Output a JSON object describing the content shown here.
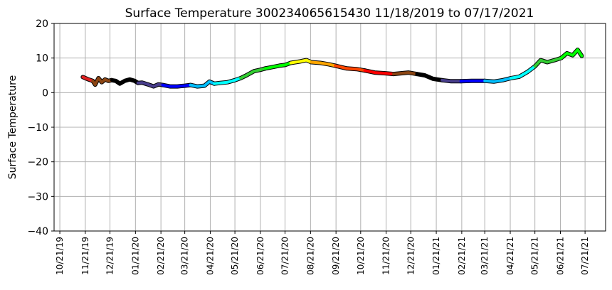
{
  "chart_data": {
    "type": "line",
    "title": "Surface Temperature 300234065615430  11/18/2019 to 07/17/2021",
    "xlabel": "",
    "ylabel": "Surface Temperature",
    "ylim": [
      -40,
      20
    ],
    "y_ticks": [
      20,
      10,
      0,
      -10,
      -20,
      -30,
      -40
    ],
    "y_tick_labels": [
      "20",
      "10",
      "0",
      "−10",
      "−20",
      "−30",
      "−40"
    ],
    "xlim": [
      "2019-10-14",
      "2021-08-15"
    ],
    "x_ticks": [
      "2019-10-21",
      "2019-11-21",
      "2019-12-21",
      "2020-01-21",
      "2020-02-21",
      "2020-03-21",
      "2020-04-21",
      "2020-05-21",
      "2020-06-21",
      "2020-07-21",
      "2020-08-21",
      "2020-09-21",
      "2020-10-21",
      "2020-11-21",
      "2020-12-21",
      "2021-01-21",
      "2021-02-21",
      "2021-03-21",
      "2021-04-21",
      "2021-05-21",
      "2021-06-21",
      "2021-07-21"
    ],
    "x_tick_labels": [
      "10/21/19",
      "11/21/19",
      "12/21/19",
      "01/21/20",
      "02/21/20",
      "03/21/20",
      "04/21/20",
      "05/21/20",
      "06/21/20",
      "07/21/20",
      "08/21/20",
      "09/21/20",
      "10/21/20",
      "11/21/20",
      "12/21/20",
      "01/21/21",
      "02/21/21",
      "03/21/21",
      "04/21/21",
      "05/21/21",
      "06/21/21",
      "07/21/21"
    ],
    "grid": true,
    "series": [
      {
        "color": "#e02020",
        "x": [
          "2019-11-18",
          "2019-11-24",
          "2019-11-30"
        ],
        "y": [
          4.5,
          3.9,
          3.4
        ]
      },
      {
        "color": "#8b4513",
        "x": [
          "2019-11-30",
          "2019-12-03",
          "2019-12-07",
          "2019-12-11",
          "2019-12-15",
          "2019-12-19",
          "2019-12-23"
        ],
        "y": [
          3.4,
          2.3,
          4.2,
          3.0,
          3.8,
          3.4,
          3.6
        ]
      },
      {
        "color": "#000000",
        "x": [
          "2019-12-23",
          "2019-12-28",
          "2020-01-02",
          "2020-01-08",
          "2020-01-14",
          "2020-01-20",
          "2020-01-24"
        ],
        "y": [
          3.6,
          3.4,
          2.6,
          3.4,
          3.8,
          3.4,
          2.8
        ]
      },
      {
        "color": "#483d8b",
        "x": [
          "2020-01-24",
          "2020-01-29",
          "2020-02-05",
          "2020-02-12",
          "2020-02-18",
          "2020-02-23"
        ],
        "y": [
          2.8,
          2.9,
          2.4,
          1.8,
          2.4,
          2.2
        ]
      },
      {
        "color": "#0000ff",
        "x": [
          "2020-02-23",
          "2020-03-03",
          "2020-03-12",
          "2020-03-21",
          "2020-03-28"
        ],
        "y": [
          2.2,
          1.8,
          1.8,
          2.0,
          2.2
        ]
      },
      {
        "color": "#00bfff",
        "x": [
          "2020-03-28",
          "2020-04-05",
          "2020-04-14",
          "2020-04-20",
          "2020-04-26"
        ],
        "y": [
          2.2,
          1.8,
          2.0,
          3.2,
          2.6
        ]
      },
      {
        "color": "#00ffff",
        "x": [
          "2020-04-26",
          "2020-05-03",
          "2020-05-12",
          "2020-05-21",
          "2020-05-28"
        ],
        "y": [
          2.6,
          2.8,
          3.0,
          3.6,
          4.2
        ]
      },
      {
        "color": "#32cd32",
        "x": [
          "2020-05-28",
          "2020-06-04",
          "2020-06-13",
          "2020-06-21",
          "2020-06-27"
        ],
        "y": [
          4.2,
          5.0,
          6.2,
          6.6,
          7.0
        ]
      },
      {
        "color": "#00ff00",
        "x": [
          "2020-06-27",
          "2020-07-06",
          "2020-07-14",
          "2020-07-21",
          "2020-07-28"
        ],
        "y": [
          7.0,
          7.4,
          7.8,
          8.0,
          8.6
        ]
      },
      {
        "color": "#ffff00",
        "x": [
          "2020-07-28",
          "2020-08-08",
          "2020-08-16",
          "2020-08-22"
        ],
        "y": [
          8.6,
          9.0,
          9.4,
          8.8
        ]
      },
      {
        "color": "#ffa500",
        "x": [
          "2020-08-22",
          "2020-09-02",
          "2020-09-12",
          "2020-09-20"
        ],
        "y": [
          8.8,
          8.6,
          8.2,
          7.8
        ]
      },
      {
        "color": "#ff4500",
        "x": [
          "2020-09-20",
          "2020-10-04",
          "2020-10-16",
          "2020-10-26"
        ],
        "y": [
          7.8,
          7.0,
          6.8,
          6.4
        ]
      },
      {
        "color": "#ff0000",
        "x": [
          "2020-10-26",
          "2020-11-07",
          "2020-11-20",
          "2020-11-30"
        ],
        "y": [
          6.4,
          5.8,
          5.6,
          5.4
        ]
      },
      {
        "color": "#8b4513",
        "x": [
          "2020-11-30",
          "2020-12-09",
          "2020-12-18",
          "2020-12-28"
        ],
        "y": [
          5.4,
          5.6,
          5.8,
          5.4
        ]
      },
      {
        "color": "#000000",
        "x": [
          "2020-12-28",
          "2021-01-07",
          "2021-01-17",
          "2021-01-28"
        ],
        "y": [
          5.4,
          5.0,
          4.0,
          3.6
        ]
      },
      {
        "color": "#483d8b",
        "x": [
          "2021-01-28",
          "2021-02-08",
          "2021-02-20"
        ],
        "y": [
          3.6,
          3.3,
          3.3
        ]
      },
      {
        "color": "#0000ff",
        "x": [
          "2021-02-20",
          "2021-03-05",
          "2021-03-21"
        ],
        "y": [
          3.3,
          3.4,
          3.4
        ]
      },
      {
        "color": "#00bfff",
        "x": [
          "2021-03-21",
          "2021-04-01",
          "2021-04-12",
          "2021-04-22"
        ],
        "y": [
          3.4,
          3.2,
          3.6,
          4.2
        ]
      },
      {
        "color": "#00ffff",
        "x": [
          "2021-04-22",
          "2021-05-02",
          "2021-05-12",
          "2021-05-21"
        ],
        "y": [
          4.2,
          4.6,
          6.0,
          7.6
        ]
      },
      {
        "color": "#32cd32",
        "x": [
          "2021-05-21",
          "2021-05-28",
          "2021-06-05",
          "2021-06-14",
          "2021-06-22"
        ],
        "y": [
          7.6,
          9.4,
          8.8,
          9.4,
          10.0
        ]
      },
      {
        "color": "#00ff00",
        "x": [
          "2021-06-22",
          "2021-06-29",
          "2021-07-06",
          "2021-07-12",
          "2021-07-17"
        ],
        "y": [
          10.0,
          11.4,
          10.8,
          12.4,
          10.6
        ]
      }
    ]
  }
}
